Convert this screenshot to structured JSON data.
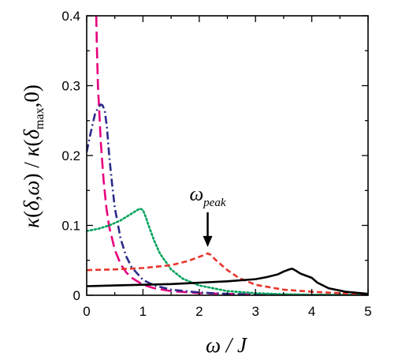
{
  "chart_data": {
    "type": "line",
    "title": "",
    "xlabel": "ω / J",
    "ylabel": "κ(δ,ω) / κ(δmax,0)",
    "ylabel_parts": {
      "kappa": "κ",
      "open": "(",
      "delta": "δ",
      "comma": ",",
      "omega": "ω",
      "close": ")",
      "slash": " / ",
      "kappa2": "κ",
      "open2": "(",
      "delta2": "δ",
      "sub": "max",
      "comma2": ",",
      "zero": "0",
      "close2": ")"
    },
    "xlim": [
      0,
      5
    ],
    "ylim": [
      0,
      0.4
    ],
    "xticks": [
      "0",
      "1",
      "2",
      "3",
      "4",
      "5"
    ],
    "yticks": [
      "0",
      "0.1",
      "0.2",
      "0.3",
      "0.4"
    ],
    "xtick_values": [
      0,
      1,
      2,
      3,
      4,
      5
    ],
    "ytick_values": [
      0,
      0.1,
      0.2,
      0.3,
      0.4
    ],
    "grid": false,
    "legend": "none",
    "annotation": {
      "text_main": "ω",
      "text_sub": "peak",
      "x": 2.15,
      "y": 0.06
    },
    "series": [
      {
        "color": "#e6007e",
        "style": "long-dash",
        "x": [
          0.17,
          0.18,
          0.2,
          0.25,
          0.3,
          0.35,
          0.4,
          0.5,
          0.6,
          0.7,
          0.8,
          1.0,
          1.2,
          1.5,
          2.0,
          3.0,
          4.0,
          5.0
        ],
        "y": [
          0.4,
          0.36,
          0.3,
          0.22,
          0.165,
          0.125,
          0.098,
          0.065,
          0.045,
          0.033,
          0.025,
          0.015,
          0.01,
          0.006,
          0.003,
          0.001,
          0.0005,
          0.0003
        ]
      },
      {
        "color": "#2b2b8c",
        "style": "dash-dot",
        "x": [
          0.0,
          0.05,
          0.1,
          0.15,
          0.2,
          0.25,
          0.28,
          0.32,
          0.36,
          0.4,
          0.45,
          0.5,
          0.6,
          0.7,
          0.8,
          1.0,
          1.2,
          1.5,
          2.0,
          2.5,
          3.0,
          4.0,
          5.0
        ],
        "y": [
          0.205,
          0.225,
          0.243,
          0.26,
          0.268,
          0.273,
          0.272,
          0.265,
          0.24,
          0.2,
          0.16,
          0.125,
          0.082,
          0.056,
          0.04,
          0.022,
          0.014,
          0.008,
          0.004,
          0.002,
          0.001,
          0.0005,
          0.0003
        ]
      },
      {
        "color": "#00a15a",
        "style": "dotted",
        "x": [
          0.0,
          0.2,
          0.4,
          0.6,
          0.8,
          0.9,
          0.95,
          1.0,
          1.05,
          1.1,
          1.2,
          1.3,
          1.5,
          1.7,
          2.0,
          2.5,
          3.0,
          3.5,
          4.0,
          5.0
        ],
        "y": [
          0.092,
          0.095,
          0.1,
          0.107,
          0.117,
          0.122,
          0.124,
          0.122,
          0.112,
          0.1,
          0.078,
          0.06,
          0.037,
          0.024,
          0.014,
          0.006,
          0.003,
          0.0015,
          0.0008,
          0.0003
        ]
      },
      {
        "color": "#e8352c",
        "style": "short-dash",
        "x": [
          0.0,
          0.5,
          1.0,
          1.5,
          1.8,
          2.0,
          2.1,
          2.15,
          2.2,
          2.3,
          2.5,
          2.7,
          3.0,
          3.5,
          4.0,
          4.5,
          5.0
        ],
        "y": [
          0.036,
          0.037,
          0.039,
          0.043,
          0.049,
          0.055,
          0.058,
          0.06,
          0.058,
          0.05,
          0.036,
          0.025,
          0.015,
          0.008,
          0.005,
          0.003,
          0.002
        ]
      },
      {
        "color": "#000000",
        "style": "solid",
        "x": [
          0.0,
          0.5,
          1.0,
          1.5,
          2.0,
          2.5,
          3.0,
          3.2,
          3.4,
          3.5,
          3.6,
          3.65,
          3.7,
          3.8,
          3.9,
          4.0,
          4.1,
          4.3,
          4.6,
          5.0
        ],
        "y": [
          0.013,
          0.014,
          0.015,
          0.016,
          0.018,
          0.02,
          0.023,
          0.026,
          0.03,
          0.034,
          0.037,
          0.038,
          0.036,
          0.031,
          0.028,
          0.025,
          0.018,
          0.01,
          0.005,
          0.002
        ]
      }
    ]
  }
}
